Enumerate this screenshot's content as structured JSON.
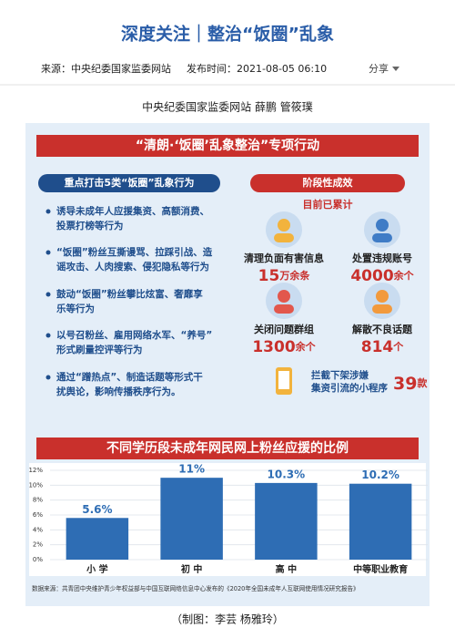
{
  "header": {
    "title": "深度关注｜整治“饭圈”乱象",
    "source": "来源：中央纪委国家监委网站",
    "time": "发布时间：2021-08-05 06:10",
    "share": "分享"
  },
  "byline": "中央纪委国家监委网站 薛鹏 管筱璞",
  "infographic": {
    "banner": "“清朗·‘饭圈’乱象整治”专项行动",
    "targets": {
      "title": "重点打击5类“饭圈”乱象行为",
      "items": [
        [
          "诱导未成年人应援集资、高额消费、",
          "投票打榜等行为"
        ],
        [
          "“饭圈”粉丝互撕谩骂、拉踩引战、造",
          "谣攻击、人肉搜索、侵犯隐私等行为"
        ],
        [
          "鼓动“饭圈”粉丝攀比炫富、奢靡享",
          "乐等行为"
        ],
        [
          "以号召粉丝、雇用网络水军、“养号”",
          "形式刷量控评等行为"
        ],
        [
          "通过“蹭热点”、制造话题等形式干",
          "扰舆论，影响传播秩序行为。"
        ]
      ]
    },
    "results": {
      "title": "阶段性成效",
      "subtitle": "目前已累计",
      "items": [
        {
          "label": "清理负面有害信息",
          "number": "15",
          "unit": "万余条"
        },
        {
          "label": "处置违规账号",
          "number": "4000",
          "unit": "余个"
        },
        {
          "label": "关闭问题群组",
          "number": "1300",
          "unit": "余个"
        },
        {
          "label": "解散不良话题",
          "number": "814",
          "unit": "个"
        }
      ],
      "extra": {
        "lines": [
          "拦截下架涉嫌",
          "集资引流的小程序"
        ],
        "number": "39",
        "unit": "款"
      }
    }
  },
  "chart_data": {
    "type": "bar",
    "title": "不同学历段未成年网民网上粉丝应援的比例",
    "categories": [
      "小 学",
      "初 中",
      "高 中",
      "中等职业教育"
    ],
    "values": [
      5.6,
      11,
      10.3,
      10.2
    ],
    "value_labels": [
      "5.6%",
      "11%",
      "10.3%",
      "10.2%"
    ],
    "color": "#2e6db4",
    "ylim": [
      0,
      12
    ],
    "yticks": [
      {
        "value": 0,
        "label": "0%"
      },
      {
        "value": 2,
        "label": "2%"
      },
      {
        "value": 4,
        "label": "4%"
      },
      {
        "value": 6,
        "label": "6%"
      },
      {
        "value": 8,
        "label": "8%"
      },
      {
        "value": 10,
        "label": "10%"
      },
      {
        "value": 12,
        "label": "12%"
      }
    ],
    "grid": true,
    "source": "数据来源：共青团中央维护青少年权益部与中国互联网络信息中心发布的《2020年全国未成年人互联网使用情况研究报告》"
  },
  "credit": "（制图：李芸 杨雅玲）"
}
